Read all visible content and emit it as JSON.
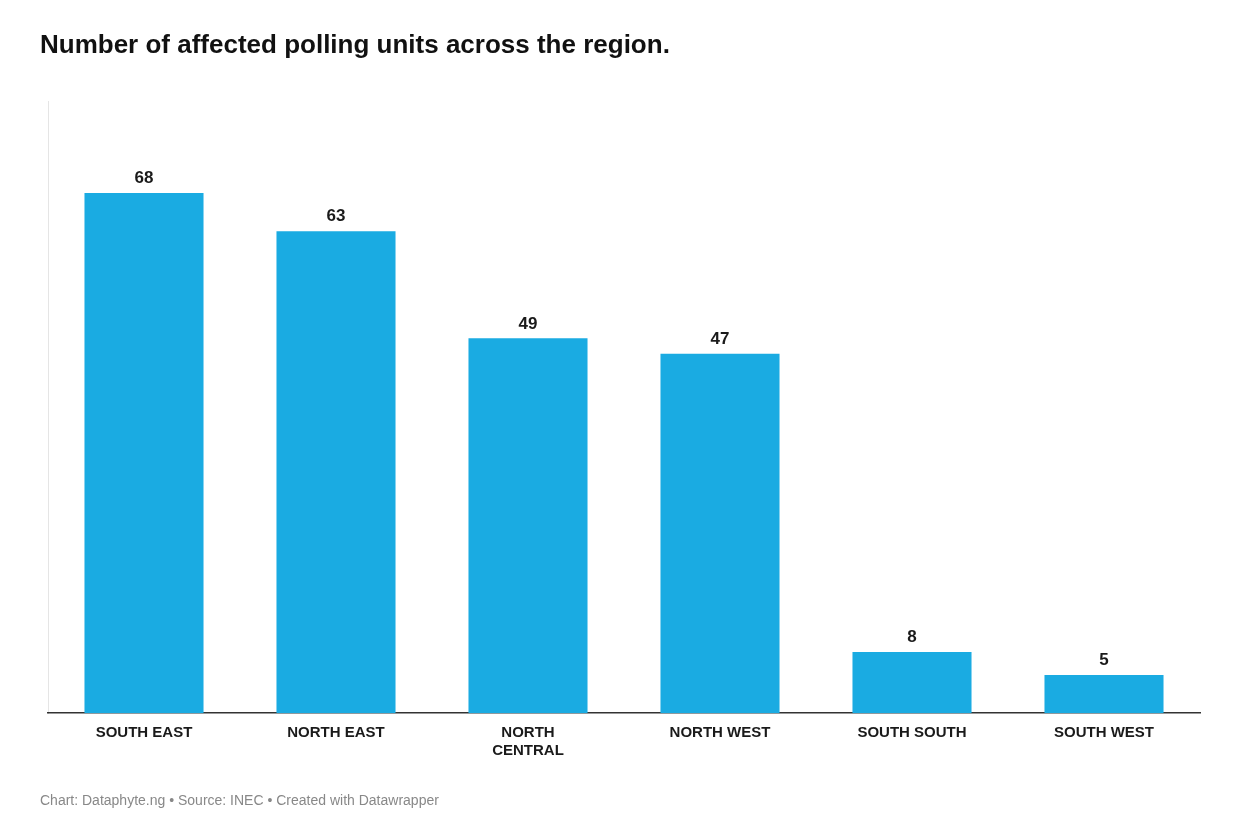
{
  "chart_data": {
    "type": "bar",
    "title": "Number of affected polling units across the region.",
    "footer": "Chart: Dataphyte.ng • Source: INEC • Created with Datawrapper",
    "categories": [
      "SOUTH EAST",
      "NORTH EAST",
      "NORTH\nCENTRAL",
      "NORTH WEST",
      "SOUTH SOUTH",
      "SOUTH WEST"
    ],
    "values": [
      68,
      63,
      49,
      47,
      8,
      5
    ],
    "color": "#1AABE2",
    "ylim": [
      0,
      80
    ],
    "grid": false,
    "data_labels": true,
    "tick_labels": "x"
  }
}
